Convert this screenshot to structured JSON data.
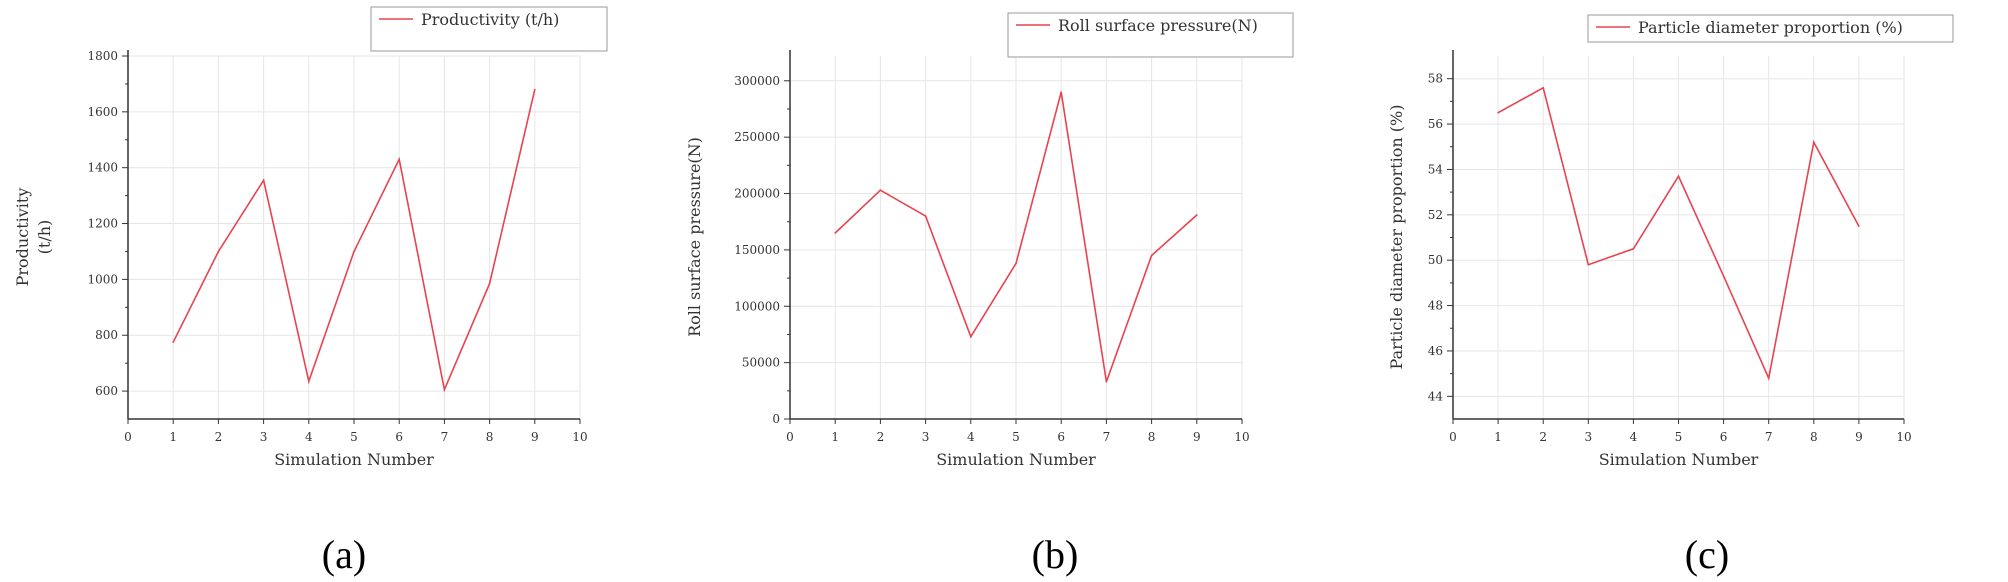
{
  "colors": {
    "series": "#e8434f",
    "grid": "#e6e6e6",
    "axis": "#333333",
    "legend_border": "#999999"
  },
  "chart_data": [
    {
      "type": "line",
      "panel_label": "(a)",
      "x": [
        1,
        2,
        3,
        4,
        5,
        6,
        7,
        8,
        9
      ],
      "series": [
        {
          "name": "Productivity (t/h)",
          "values": [
            775,
            1100,
            1355,
            635,
            1100,
            1430,
            605,
            985,
            1680
          ]
        }
      ],
      "xlabel": "Simulation Number",
      "ylabel_lines": [
        "Productivity",
        "(t/h)"
      ],
      "xlim": [
        0,
        10
      ],
      "ylim": [
        500,
        1800
      ],
      "xticks": [
        0,
        1,
        2,
        3,
        4,
        5,
        6,
        7,
        8,
        9,
        10
      ],
      "yticks": [
        600,
        800,
        1000,
        1200,
        1400,
        1600,
        1800
      ],
      "grid": true,
      "legend_position": "top"
    },
    {
      "type": "line",
      "panel_label": "(b)",
      "x": [
        1,
        2,
        3,
        4,
        5,
        6,
        7,
        8,
        9
      ],
      "series": [
        {
          "name": "Roll surface pressure(N)",
          "values": [
            165000,
            203000,
            180000,
            73000,
            138000,
            290000,
            33000,
            145000,
            181000
          ]
        }
      ],
      "xlabel": "Simulation Number",
      "ylabel_lines": [
        "Roll surface pressure(N)"
      ],
      "xlim": [
        0,
        10
      ],
      "ylim": [
        0,
        322000
      ],
      "xticks": [
        0,
        1,
        2,
        3,
        4,
        5,
        6,
        7,
        8,
        9,
        10
      ],
      "yticks": [
        0,
        50000,
        100000,
        150000,
        200000,
        250000,
        300000
      ],
      "grid": true,
      "legend_position": "top-right"
    },
    {
      "type": "line",
      "panel_label": "(c)",
      "x": [
        1,
        2,
        3,
        4,
        5,
        6,
        7,
        8,
        9
      ],
      "series": [
        {
          "name": "Particle diameter proportion (%)",
          "values": [
            56.5,
            57.6,
            49.8,
            50.5,
            53.7,
            49.3,
            44.8,
            55.2,
            51.5
          ]
        }
      ],
      "xlabel": "Simulation Number",
      "ylabel_lines": [
        "Particle diameter proportion (%)"
      ],
      "xlim": [
        0,
        10
      ],
      "ylim": [
        43,
        59
      ],
      "xticks": [
        0,
        1,
        2,
        3,
        4,
        5,
        6,
        7,
        8,
        9,
        10
      ],
      "yticks": [
        44,
        46,
        48,
        50,
        52,
        54,
        56,
        58
      ],
      "grid": true,
      "legend_position": "top-right"
    }
  ]
}
